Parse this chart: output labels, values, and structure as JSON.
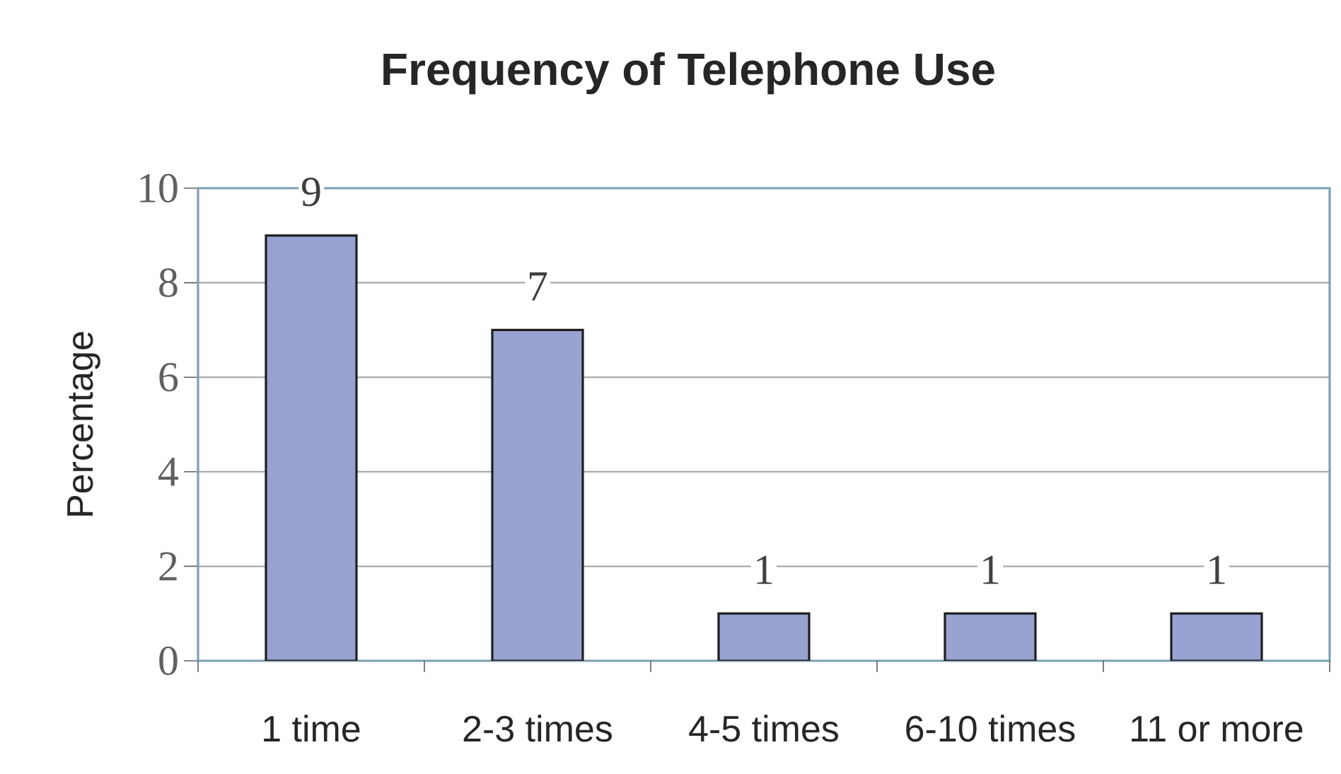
{
  "chart_data": {
    "type": "bar",
    "title": "Frequency of Telephone Use",
    "ylabel": "Percentage",
    "categories": [
      "1 time",
      "2-3 times",
      "4-5 times",
      "6-10 times",
      "11 or more"
    ],
    "values": [
      9,
      7,
      1,
      1,
      1
    ],
    "color": "#98a3d2",
    "ylim": [
      0,
      10
    ],
    "yticks": [
      0,
      2,
      4,
      6,
      8,
      10
    ],
    "grid": "y",
    "data_labels": true
  }
}
